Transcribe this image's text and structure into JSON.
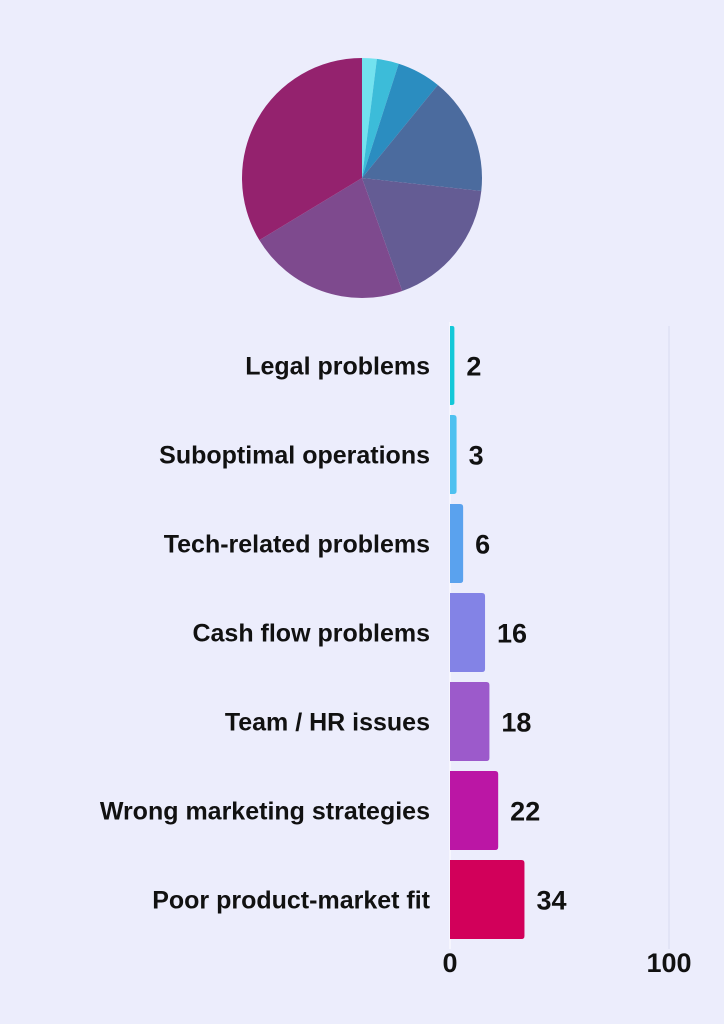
{
  "chart_data": [
    {
      "type": "pie",
      "title": "",
      "categories": [
        "Legal problems",
        "Suboptimal operations",
        "Tech-related problems",
        "Cash flow problems",
        "Team / HR issues",
        "Wrong marketing strategies",
        "Poor product-market fit"
      ],
      "values": [
        2,
        3,
        6,
        16,
        18,
        22,
        34
      ],
      "colors": [
        "#72e2ef",
        "#3cbcd9",
        "#2b8dc0",
        "#4b6b9e",
        "#645c94",
        "#7e4a8e",
        "#94226e"
      ],
      "start": "12 o'clock",
      "direction": "clockwise",
      "legend": "none"
    },
    {
      "type": "bar",
      "orientation": "horizontal",
      "title": "",
      "xlabel": "",
      "ylabel": "",
      "categories": [
        "Legal problems",
        "Suboptimal operations",
        "Tech-related problems",
        "Cash flow problems",
        "Team / HR issues",
        "Wrong marketing strategies",
        "Poor product-market fit"
      ],
      "values": [
        2,
        3,
        6,
        16,
        18,
        22,
        34
      ],
      "value_labels": [
        "2",
        "3",
        "6",
        "16",
        "18",
        "22",
        "34"
      ],
      "colors": [
        "#14c8d8",
        "#4ec1f0",
        "#5aa2ee",
        "#8383e6",
        "#9c5acb",
        "#bb16a5",
        "#d2005a"
      ],
      "xlim": [
        0,
        100
      ],
      "x_ticks": [
        "0",
        "100"
      ],
      "grid": false,
      "legend": "none"
    }
  ]
}
